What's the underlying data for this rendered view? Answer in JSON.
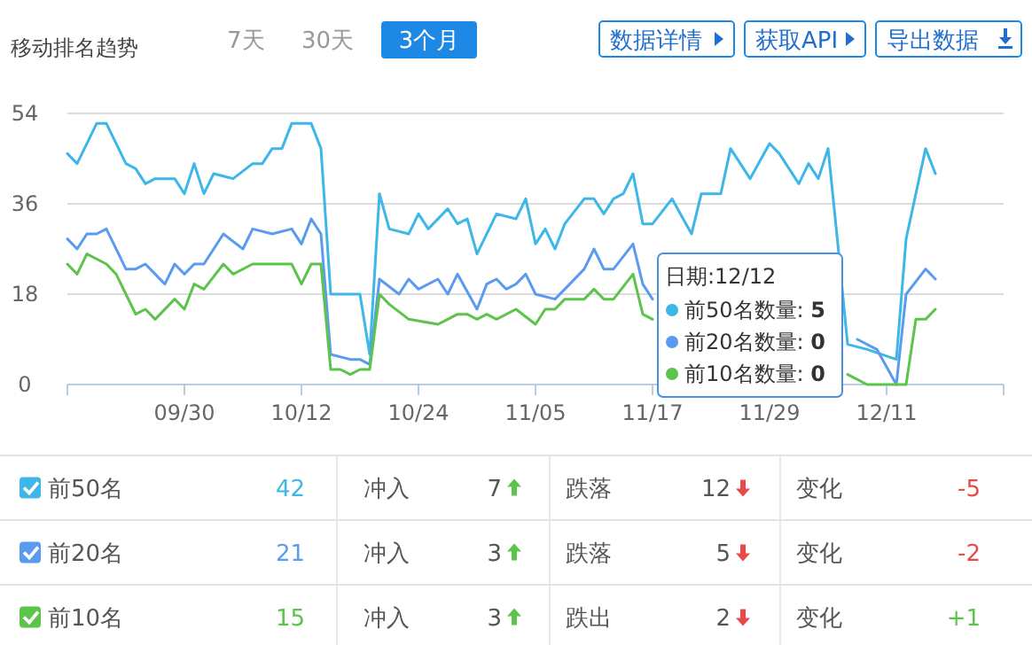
{
  "chart_data": [
    {
      "type": "line",
      "title": "移动排名趋势",
      "annotations": [
        "7天",
        "30天",
        "3个月",
        "数据详情",
        "获取API",
        "导出数据",
        "日期:12/12",
        "前50名数量: **5**",
        "前20名数量: **0**",
        "前10名数量: **0**"
      ],
      "xlim": [
        "--09-18",
        "--12-23"
      ],
      "xticks": [
        {
          "value": "--09-18",
          "label": null
        },
        {
          "value": "--09-30",
          "label": "09/30"
        },
        {
          "value": "--10-12",
          "label": "10/12"
        },
        {
          "value": "--10-24",
          "label": "10/24"
        },
        {
          "value": "--11-05",
          "label": "11/05"
        },
        {
          "value": "--11-17",
          "label": "11/17"
        },
        {
          "value": "--11-29",
          "label": "11/29"
        },
        {
          "value": "--12-11",
          "label": "12/11"
        },
        {
          "value": "--12-23",
          "label": null
        }
      ],
      "ylim": [
        0,
        54
      ],
      "yticks": [
        0,
        18,
        36,
        54
      ],
      "grid": "y",
      "legend": "bottom left",
      "series": [
        {
          "name": "前50名",
          "color": "#3db6e8",
          "x": [
            "--09-18",
            "--09-19",
            "--09-21",
            "--09-22",
            "--09-24",
            "--09-25",
            "--09-26",
            "--09-27",
            "--09-29",
            "--09-30",
            "--10-01",
            "--10-02",
            "--10-03",
            "--10-05",
            "--10-07",
            "--10-08",
            "--10-09",
            "--10-10",
            "--10-11",
            "--10-13",
            "--10-14",
            "--10-15",
            "--10-17",
            "--10-18",
            "--10-19",
            "--10-20",
            "--10-21",
            "--10-23",
            "--10-24",
            "--10-25",
            "--10-27",
            "--10-28",
            "--10-29",
            "--10-30",
            "--11-01",
            "--11-03",
            "--11-04",
            "--11-05",
            "--11-06",
            "--11-07",
            "--11-08",
            "--11-10",
            "--11-11",
            "--11-12",
            "--11-13",
            "--11-14",
            "--11-15",
            "--11-16",
            "--11-17",
            "--11-19",
            "--11-21",
            "--11-22",
            "--11-24",
            "--11-25",
            "--11-27",
            "--11-29",
            "--11-30",
            "--12-02",
            "--12-03",
            "--12-04",
            "--12-05",
            "--12-06",
            "--12-07",
            "--12-09",
            "--12-12",
            "--12-13",
            "--12-15",
            "--12-16"
          ],
          "values": [
            46,
            44,
            52,
            52,
            44,
            43,
            40,
            41,
            41,
            38,
            44,
            38,
            42,
            41,
            44,
            44,
            47,
            47,
            52,
            52,
            47,
            18,
            18,
            18,
            6,
            38,
            31,
            30,
            34,
            31,
            35,
            32,
            33,
            26,
            34,
            33,
            37,
            28,
            31,
            27,
            32,
            37,
            37,
            34,
            37,
            38,
            42,
            32,
            32,
            37,
            30,
            38,
            38,
            47,
            41,
            48,
            46,
            40,
            44,
            41,
            47,
            28,
            8,
            7,
            5,
            29,
            47,
            42
          ]
        },
        {
          "name": "前20名",
          "color": "#5a9bf0",
          "x": [
            "--09-18",
            "--09-19",
            "--09-20",
            "--09-21",
            "--09-22",
            "--09-24",
            "--09-25",
            "--09-26",
            "--09-27",
            "--09-28",
            "--09-29",
            "--09-30",
            "--10-01",
            "--10-02",
            "--10-04",
            "--10-06",
            "--10-07",
            "--10-09",
            "--10-11",
            "--10-12",
            "--10-13",
            "--10-14",
            "--10-15",
            "--10-17",
            "--10-18",
            "--10-19",
            "--10-20",
            "--10-22",
            "--10-23",
            "--10-24",
            "--10-26",
            "--10-27",
            "--10-28",
            "--10-30",
            "--10-31",
            "--11-01",
            "--11-02",
            "--11-03",
            "--11-04",
            "--11-05",
            "--11-07",
            "--11-08",
            "--11-10",
            "--11-11",
            "--11-12",
            "--11-13",
            "--11-15",
            "--11-16",
            "--11-17",
            "--11-27",
            "--12-08",
            "--12-10",
            "--12-12",
            "--12-13",
            "--12-15",
            "--12-16"
          ],
          "values": [
            29,
            27,
            30,
            30,
            31,
            23,
            23,
            24,
            22,
            20,
            24,
            22,
            24,
            24,
            30,
            27,
            31,
            30,
            31,
            28,
            33,
            30,
            6,
            5,
            5,
            4,
            21,
            18,
            21,
            19,
            21,
            18,
            22,
            15,
            20,
            21,
            19,
            20,
            22,
            18,
            17,
            19,
            23,
            27,
            23,
            23,
            28,
            20,
            17,
            null,
            9,
            7,
            0,
            18,
            23,
            21
          ]
        },
        {
          "name": "前10名",
          "color": "#5cc44a",
          "x": [
            "--09-18",
            "--09-19",
            "--09-20",
            "--09-22",
            "--09-23",
            "--09-24",
            "--09-25",
            "--09-26",
            "--09-27",
            "--09-29",
            "--09-30",
            "--10-01",
            "--10-02",
            "--10-04",
            "--10-05",
            "--10-07",
            "--10-11",
            "--10-12",
            "--10-13",
            "--10-14",
            "--10-15",
            "--10-16",
            "--10-17",
            "--10-18",
            "--10-19",
            "--10-20",
            "--10-21",
            "--10-23",
            "--10-26",
            "--10-28",
            "--10-29",
            "--10-30",
            "--10-31",
            "--11-01",
            "--11-03",
            "--11-05",
            "--11-06",
            "--11-07",
            "--11-08",
            "--11-10",
            "--11-11",
            "--11-12",
            "--11-13",
            "--11-15",
            "--11-16",
            "--11-17",
            "--11-27",
            "--12-07",
            "--12-09",
            "--12-12",
            "--12-13",
            "--12-14",
            "--12-15",
            "--12-16"
          ],
          "values": [
            24,
            22,
            26,
            24,
            22,
            18,
            14,
            15,
            13,
            17,
            15,
            20,
            19,
            24,
            22,
            24,
            24,
            20,
            24,
            24,
            3,
            3,
            2,
            3,
            3,
            18,
            16,
            13,
            12,
            14,
            14,
            13,
            14,
            13,
            15,
            12,
            15,
            15,
            17,
            17,
            19,
            17,
            17,
            22,
            14,
            13,
            null,
            2,
            0,
            0,
            0,
            13,
            13,
            15
          ]
        }
      ]
    },
    {
      "type": "other",
      "annotations": [
        "42",
        "冲入",
        "7",
        "跌落",
        "12",
        "变化",
        "-5",
        "21",
        "冲入",
        "3",
        "跌落",
        "5",
        "变化",
        "-2",
        "15",
        "冲入",
        "3",
        "跌出",
        "2",
        "变化",
        "+1"
      ],
      "colors": [
        "#3db6e8",
        "#555555",
        "#555555",
        "#555555",
        "#555555",
        "#555555",
        "#e84a4a",
        "#5a9bf0",
        "#555555",
        "#555555",
        "#555555",
        "#555555",
        "#555555",
        "#e84a4a",
        "#5cc44a",
        "#555555",
        "#555555",
        "#555555",
        "#555555",
        "#555555",
        "#5cc44a"
      ]
    }
  ]
}
